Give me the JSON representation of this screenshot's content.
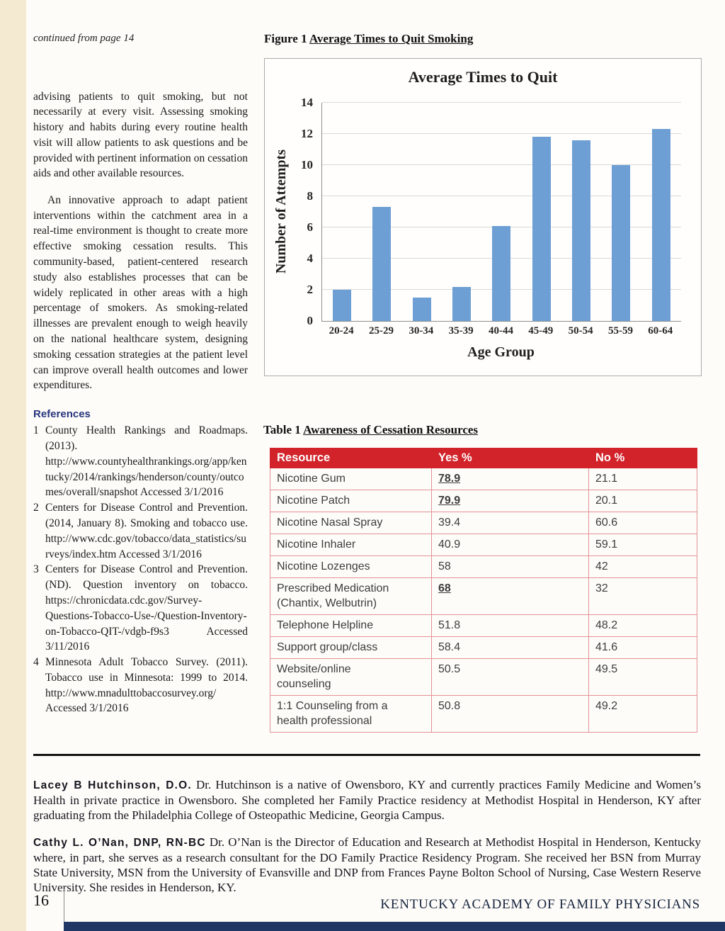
{
  "page": {
    "continued_note": "continued from page 14",
    "figure_caption": {
      "prefix": "Figure 1",
      "title": "Average Times to Quit Smoking"
    },
    "table_caption": {
      "prefix": "Table 1",
      "title": "Awareness of Cessation Resources"
    },
    "footer": {
      "page_number": "16",
      "journal": "KENTUCKY ACADEMY OF FAMILY PHYSICIANS"
    }
  },
  "article": {
    "paragraphs": [
      "advising patients to quit smoking, but not necessarily at every visit.  Assessing smoking history and habits during every routine health visit will allow patients to ask questions and be provided with pertinent information on cessation aids and other available resources.",
      "An innovative approach to adapt patient interventions within the catchment area in a real-time environment is thought to create more effective smoking cessation results. This community-based, patient-centered research study also establishes processes that can be widely replicated in other areas with a high percentage of smokers.  As smoking-related illnesses are prevalent enough to weigh heavily on the national healthcare system, designing smoking cessation strategies at the patient level can improve overall health outcomes and lower expenditures."
    ],
    "references_heading": "References",
    "references": [
      {
        "num": "1",
        "text": "County Health Rankings and Roadmaps. (2013). http://www.countyhealthrankings.org/app/kentucky/2014/rankings/henderson/county/outcomes/overall/snapshot Accessed 3/1/2016"
      },
      {
        "num": "2",
        "text": "Centers for Disease Control and Prevention. (2014, January 8). Smoking and tobacco use. http://www.cdc.gov/tobacco/data_statistics/surveys/index.htm Accessed 3/1/2016"
      },
      {
        "num": "3",
        "text": "Centers for Disease Control and Prevention. (ND). Question inventory on tobacco. https://chronicdata.cdc.gov/Survey-Questions-Tobacco-Use-/Question-Inventory-on-Tobacco-QIT-/vdgb-f9s3 Accessed 3/11/2016"
      },
      {
        "num": "4",
        "text": "Minnesota Adult Tobacco Survey. (2011). Tobacco use in Minnesota: 1999 to 2014. http://www.mnadulttobaccosurvey.org/ Accessed 3/1/2016"
      }
    ]
  },
  "chart_data": {
    "type": "bar",
    "title": "Average Times to Quit",
    "categories": [
      "20-24",
      "25-29",
      "30-34",
      "35-39",
      "40-44",
      "45-49",
      "50-54",
      "55-59",
      "60-64"
    ],
    "values": [
      2,
      7.3,
      1.5,
      2.2,
      6.1,
      11.8,
      11.6,
      10,
      12.3
    ],
    "xlabel": "Age Group",
    "ylabel": "Number of Attempts",
    "ylim": [
      0,
      14
    ],
    "ytick_step": 2,
    "grid": true,
    "legend": false,
    "bar_color": "#6d9fd4"
  },
  "table": {
    "columns": [
      "Resource",
      "Yes %",
      "No %"
    ],
    "rows": [
      {
        "resource": "Nicotine Gum",
        "yes": "78.9",
        "no": "21.1",
        "highlight": true
      },
      {
        "resource": "Nicotine Patch",
        "yes": "79.9",
        "no": "20.1",
        "highlight": true
      },
      {
        "resource": "Nicotine Nasal Spray",
        "yes": "39.4",
        "no": "60.6",
        "highlight": false
      },
      {
        "resource": "Nicotine Inhaler",
        "yes": "40.9",
        "no": "59.1",
        "highlight": false
      },
      {
        "resource": "Nicotine Lozenges",
        "yes": "58",
        "no": "42",
        "highlight": false
      },
      {
        "resource": "Prescribed Medication\n(Chantix, Welbutrin)",
        "yes": "68",
        "no": "32",
        "highlight": true
      },
      {
        "resource": "Telephone Helpline",
        "yes": "51.8",
        "no": "48.2",
        "highlight": false
      },
      {
        "resource": "Support group/class",
        "yes": "58.4",
        "no": "41.6",
        "highlight": false
      },
      {
        "resource": "Website/online\ncounseling",
        "yes": "50.5",
        "no": "49.5",
        "highlight": false
      },
      {
        "resource": "1:1 Counseling from a\nhealth professional",
        "yes": "50.8",
        "no": "49.2",
        "highlight": false
      }
    ]
  },
  "bios": [
    {
      "name": "Lacey B Hutchinson, D.O.",
      "text": "Dr. Hutchinson is a native of Owensboro, KY and currently practices Family Medicine and Women’s Health in private practice in Owensboro. She completed her Family Practice residency at Methodist Hospital in Henderson, KY after graduating from the Philadelphia College of Osteopathic Medicine, Georgia Campus."
    },
    {
      "name": "Cathy L. O’Nan, DNP, RN-BC",
      "text": "Dr. O’Nan is the Director of Education and Research at Methodist Hospital in Henderson, Kentucky where, in part, she serves as a research consultant for the DO Family Practice Residency Program. She received her BSN from Murray State University, MSN from the University of Evansville and DNP from Frances Payne Bolton School of Nursing, Case Western Reserve University. She resides in Henderson, KY."
    }
  ],
  "colors": {
    "table_header_bg": "#d2232a",
    "bar_fill": "#6d9fd4",
    "left_stripe": "#f4ead1",
    "bottom_bar": "#1e3765",
    "references_heading": "#27357e"
  }
}
